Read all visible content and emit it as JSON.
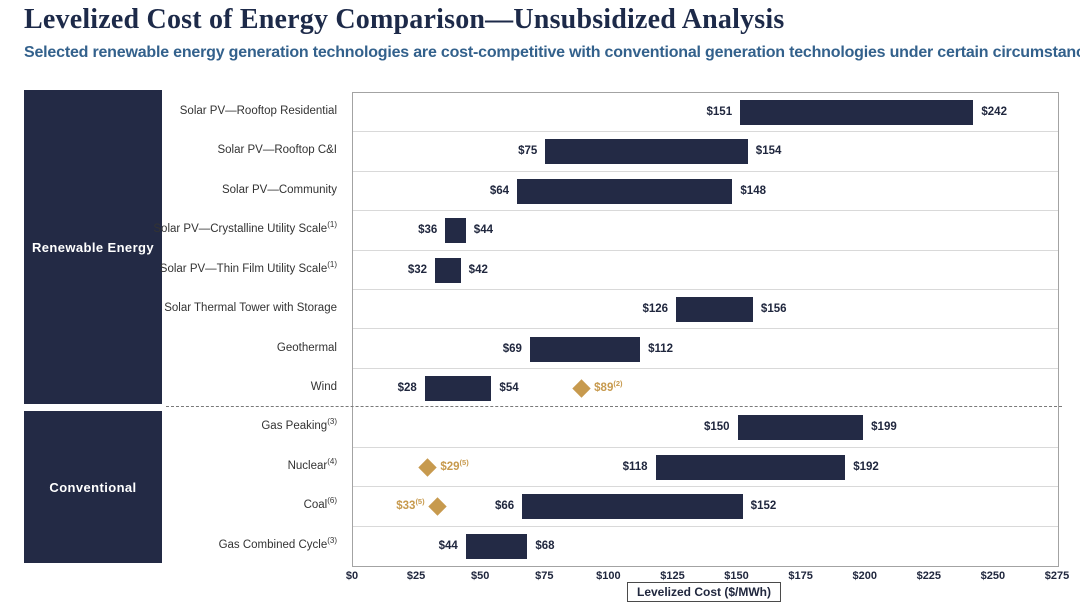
{
  "header": {
    "title": "Levelized Cost of Energy Comparison—Unsubsidized Analysis",
    "subtitle": "Selected renewable energy generation technologies are cost-competitive with conventional generation technologies under certain circumstances"
  },
  "colors": {
    "navy": "#232A45",
    "gold": "#C79A4E",
    "title_text": "#1D2A49",
    "subtitle_text": "#33618C",
    "value_text": "#20273E",
    "row_separator": "#D9D9D9",
    "plot_border": "#A3A3A3"
  },
  "chart_data": {
    "type": "bar",
    "variant": "horizontal-range-bars",
    "xlabel": "Levelized Cost ($/MWh)",
    "xlim": [
      0,
      275
    ],
    "tick_step": 25,
    "x_tick_labels": [
      "$0",
      "$25",
      "$50",
      "$75",
      "$100",
      "$125",
      "$150",
      "$175",
      "$200",
      "$225",
      "$250",
      "$275"
    ],
    "grid": "row-separators",
    "sections": [
      {
        "name": "Renewable Energy",
        "rows": [
          {
            "label": "Solar PV—Rooftop Residential",
            "sup": "",
            "low": 151,
            "high": 242,
            "low_label": "$151",
            "high_label": "$242"
          },
          {
            "label": "Solar PV—Rooftop C&I",
            "sup": "",
            "low": 75,
            "high": 154,
            "low_label": "$75",
            "high_label": "$154"
          },
          {
            "label": "Solar PV—Community",
            "sup": "",
            "low": 64,
            "high": 148,
            "low_label": "$64",
            "high_label": "$148"
          },
          {
            "label": "Solar PV—Crystalline Utility Scale",
            "sup": "(1)",
            "low": 36,
            "high": 44,
            "low_label": "$36",
            "high_label": "$44"
          },
          {
            "label": "Solar PV—Thin Film Utility Scale",
            "sup": "(1)",
            "low": 32,
            "high": 42,
            "low_label": "$32",
            "high_label": "$42"
          },
          {
            "label": "Solar Thermal Tower with Storage",
            "sup": "",
            "low": 126,
            "high": 156,
            "low_label": "$126",
            "high_label": "$156"
          },
          {
            "label": "Geothermal",
            "sup": "",
            "low": 69,
            "high": 112,
            "low_label": "$69",
            "high_label": "$112"
          },
          {
            "label": "Wind",
            "sup": "",
            "low": 28,
            "high": 54,
            "low_label": "$28",
            "high_label": "$54",
            "diamond": {
              "value": 89,
              "label": "$89",
              "sup": "(2)",
              "side": "right"
            }
          }
        ]
      },
      {
        "name": "Conventional",
        "rows": [
          {
            "label": "Gas Peaking",
            "sup": "(3)",
            "low": 150,
            "high": 199,
            "low_label": "$150",
            "high_label": "$199"
          },
          {
            "label": "Nuclear",
            "sup": "(4)",
            "low": 118,
            "high": 192,
            "low_label": "$118",
            "high_label": "$192",
            "diamond": {
              "value": 29,
              "label": "$29",
              "sup": "(5)",
              "side": "right"
            }
          },
          {
            "label": "Coal",
            "sup": "(6)",
            "low": 66,
            "high": 152,
            "low_label": "$66",
            "high_label": "$152",
            "diamond": {
              "value": 33,
              "label": "$33",
              "sup": "(5)",
              "side": "left"
            }
          },
          {
            "label": "Gas Combined Cycle",
            "sup": "(3)",
            "low": 44,
            "high": 68,
            "low_label": "$44",
            "high_label": "$68"
          }
        ]
      }
    ]
  }
}
